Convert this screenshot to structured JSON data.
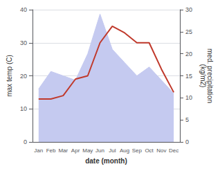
{
  "chart_data": {
    "type": "line",
    "xlabel": "date (month)",
    "ylabel": "max temp (C)",
    "y2label": "med. precipitation\n(kg/m2)",
    "categories": [
      "Jan",
      "Feb",
      "Mar",
      "Apr",
      "May",
      "Jun",
      "Jul",
      "Aug",
      "Sep",
      "Oct",
      "Nov",
      "Dec"
    ],
    "series": [
      {
        "type": "area",
        "axis": "y2",
        "color": "#c5caf0",
        "values": [
          12,
          16,
          15,
          14,
          20,
          29,
          21,
          18,
          15,
          17,
          14,
          11
        ]
      },
      {
        "type": "line",
        "color": "#c0392b",
        "values": [
          13,
          13,
          14,
          19,
          20,
          30,
          35,
          33,
          30,
          30,
          22,
          15
        ]
      }
    ],
    "ylim": [
      0,
      40
    ],
    "yticks": [
      0,
      10,
      20,
      30,
      40
    ],
    "y2lim": [
      0,
      30
    ],
    "y2ticks": [
      0,
      5,
      10,
      15,
      20,
      25,
      30
    ],
    "grid": true
  }
}
